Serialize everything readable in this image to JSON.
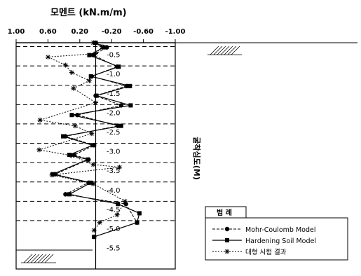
{
  "chart_data": {
    "type": "line",
    "title": "모멘트 (kN.m/m)",
    "ylabel": "굴착심도(M)",
    "xlim": [
      1.0,
      -1.0
    ],
    "ylim": [
      -0.2,
      -5.5
    ],
    "x_ticks": [
      "1.00",
      "0.60",
      "0.20",
      "-0.20",
      "-0.60",
      "-1.00"
    ],
    "x_tick_values": [
      1.0,
      0.6,
      0.2,
      -0.2,
      -0.6,
      -1.0
    ],
    "y_ticks": [
      "-0.5",
      "-1.0",
      "-1.5",
      "-2.0",
      "-2.5",
      "-3.0",
      "-3.5",
      "-4.0",
      "-4.5",
      "-5.0",
      "-5.5"
    ],
    "y_tick_values": [
      -0.5,
      -1.0,
      -1.5,
      -2.0,
      -2.5,
      -3.0,
      -3.5,
      -4.0,
      -4.5,
      -5.0,
      -5.5
    ],
    "excavation_levels": [
      -0.3,
      -0.8,
      -1.3,
      -1.8,
      -2.3,
      -2.8,
      -3.3,
      -3.8,
      -4.3,
      -4.8
    ],
    "legend_title": "범 례",
    "legend_position": "bottom-right",
    "series": [
      {
        "name": "Mohr-Coulomb Model",
        "marker": "circle",
        "style": "dashed",
        "points": [
          {
            "x": 0.0,
            "y": -0.2
          },
          {
            "x": -0.14,
            "y": -0.32
          },
          {
            "x": 0.03,
            "y": -0.52
          },
          {
            "x": -0.27,
            "y": -0.82
          },
          {
            "x": 0.05,
            "y": -1.07
          },
          {
            "x": -0.39,
            "y": -1.32
          },
          {
            "x": 0.0,
            "y": -1.57
          },
          {
            "x": -0.32,
            "y": -1.82
          },
          {
            "x": 0.23,
            "y": -2.07
          },
          {
            "x": -0.28,
            "y": -2.35
          },
          {
            "x": 0.38,
            "y": -2.62
          },
          {
            "x": 0.02,
            "y": -2.85
          },
          {
            "x": 0.27,
            "y": -3.1
          },
          {
            "x": 0.09,
            "y": -3.22
          },
          {
            "x": 0.51,
            "y": -3.6
          },
          {
            "x": 0.09,
            "y": -3.82
          },
          {
            "x": 0.38,
            "y": -4.12
          },
          {
            "x": -0.38,
            "y": -4.37
          },
          {
            "x": -0.52,
            "y": -4.85
          },
          {
            "x": 0.02,
            "y": -5.22
          }
        ]
      },
      {
        "name": "Hardening Soil Model",
        "marker": "square",
        "style": "solid",
        "points": [
          {
            "x": 0.0,
            "y": -0.2
          },
          {
            "x": -0.1,
            "y": -0.32
          },
          {
            "x": 0.08,
            "y": -0.52
          },
          {
            "x": -0.29,
            "y": -0.82
          },
          {
            "x": 0.06,
            "y": -1.07
          },
          {
            "x": -0.43,
            "y": -1.32
          },
          {
            "x": -0.01,
            "y": -1.57
          },
          {
            "x": -0.44,
            "y": -1.82
          },
          {
            "x": 0.3,
            "y": -2.07
          },
          {
            "x": -0.32,
            "y": -2.35
          },
          {
            "x": 0.41,
            "y": -2.62
          },
          {
            "x": 0.04,
            "y": -2.85
          },
          {
            "x": 0.33,
            "y": -3.1
          },
          {
            "x": 0.1,
            "y": -3.22
          },
          {
            "x": 0.54,
            "y": -3.6
          },
          {
            "x": 0.06,
            "y": -3.82
          },
          {
            "x": 0.33,
            "y": -4.12
          },
          {
            "x": -0.28,
            "y": -4.37
          },
          {
            "x": -0.55,
            "y": -4.61
          },
          {
            "x": -0.52,
            "y": -4.85
          },
          {
            "x": 0.02,
            "y": -5.22
          }
        ]
      },
      {
        "name": "대형 시험 결과",
        "marker": "asterisk",
        "style": "dotted",
        "points": [
          {
            "x": 0.03,
            "y": -0.2
          },
          {
            "x": -0.08,
            "y": -0.3
          },
          {
            "x": 0.0,
            "y": -0.48
          },
          {
            "x": 0.6,
            "y": -0.57
          },
          {
            "x": 0.38,
            "y": -0.78
          },
          {
            "x": 0.3,
            "y": -0.97
          },
          {
            "x": 0.08,
            "y": -1.18
          },
          {
            "x": 0.28,
            "y": -1.38
          },
          {
            "x": 0.0,
            "y": -1.75
          },
          {
            "x": 0.7,
            "y": -2.2
          },
          {
            "x": 0.26,
            "y": -2.35
          },
          {
            "x": 0.05,
            "y": -2.55
          },
          {
            "x": 0.71,
            "y": -2.97
          },
          {
            "x": 0.3,
            "y": -3.12
          },
          {
            "x": 0.03,
            "y": -3.35
          },
          {
            "x": -0.3,
            "y": -3.42
          },
          {
            "x": 0.55,
            "y": -3.62
          },
          {
            "x": 0.03,
            "y": -3.85
          },
          {
            "x": -0.37,
            "y": -4.3
          },
          {
            "x": -0.27,
            "y": -4.65
          },
          {
            "x": -0.05,
            "y": -4.85
          },
          {
            "x": 0.02,
            "y": -5.05
          }
        ]
      }
    ]
  }
}
